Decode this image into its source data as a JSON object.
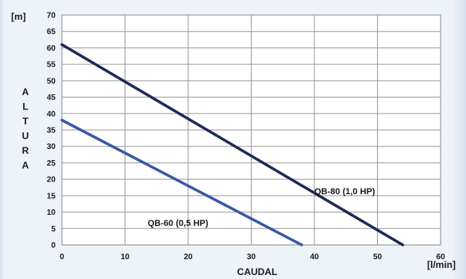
{
  "chart_data": {
    "type": "line",
    "xlabel": "CAUDAL",
    "x_unit": "[l/min]",
    "ylabel_letters": [
      "A",
      "L",
      "T",
      "U",
      "R",
      "A"
    ],
    "y_unit": "[m]",
    "xlim": [
      0,
      60
    ],
    "ylim": [
      0,
      70
    ],
    "x_ticks": [
      0,
      10,
      20,
      30,
      40,
      50,
      60
    ],
    "y_ticks": [
      0,
      5,
      10,
      15,
      20,
      25,
      30,
      35,
      40,
      45,
      50,
      55,
      60,
      65,
      70
    ],
    "grid": true,
    "series": [
      {
        "name": "QB-60 (0,5 HP)",
        "color": "#3a58a6",
        "x": [
          0,
          38
        ],
        "y": [
          38,
          0
        ]
      },
      {
        "name": "QB-80 (1,0 HP)",
        "color": "#1c2a57",
        "x": [
          0,
          54
        ],
        "y": [
          61,
          0
        ]
      }
    ]
  }
}
